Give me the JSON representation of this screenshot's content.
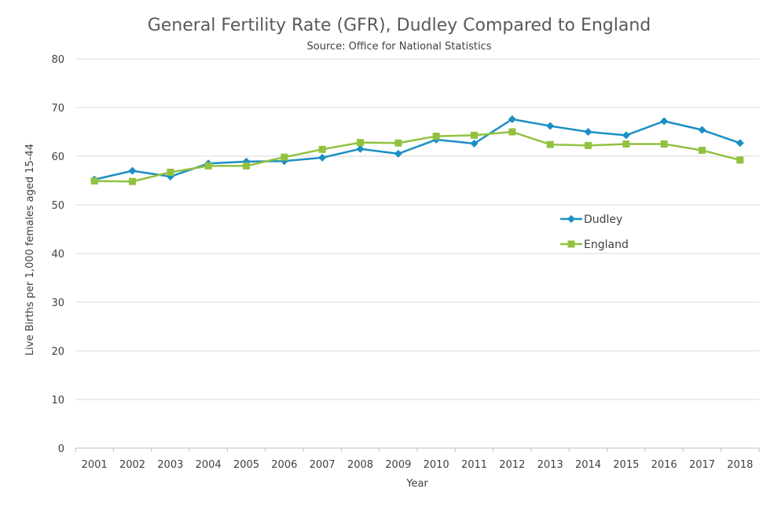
{
  "chart_data": {
    "type": "line",
    "title": "General Fertility Rate (GFR), Dudley Compared to England",
    "subtitle": "Source: Office for National Statistics",
    "xlabel": "Year",
    "ylabel": "Live Births per 1,000 females aged 15-44",
    "ylim": [
      0,
      80
    ],
    "yticks": [
      0,
      10,
      20,
      30,
      40,
      50,
      60,
      70,
      80
    ],
    "grid": true,
    "legend_position": "right",
    "categories": [
      "2001",
      "2002",
      "2003",
      "2004",
      "2005",
      "2006",
      "2007",
      "2008",
      "2009",
      "2010",
      "2011",
      "2012",
      "2013",
      "2014",
      "2015",
      "2016",
      "2017",
      "2018"
    ],
    "series": [
      {
        "name": "Dudley",
        "color": "#1a8fc4",
        "marker": "diamond",
        "values": [
          55.2,
          57.0,
          55.8,
          58.5,
          58.9,
          59.0,
          59.7,
          61.5,
          60.5,
          63.4,
          62.6,
          67.6,
          66.2,
          65.0,
          64.3,
          67.2,
          65.4,
          62.7
        ]
      },
      {
        "name": "England",
        "color": "#92c140",
        "marker": "square",
        "values": [
          54.9,
          54.8,
          56.7,
          58.0,
          58.0,
          59.8,
          61.4,
          62.8,
          62.7,
          64.1,
          64.3,
          65.0,
          62.4,
          62.2,
          62.5,
          62.5,
          61.2,
          59.2
        ]
      }
    ]
  }
}
